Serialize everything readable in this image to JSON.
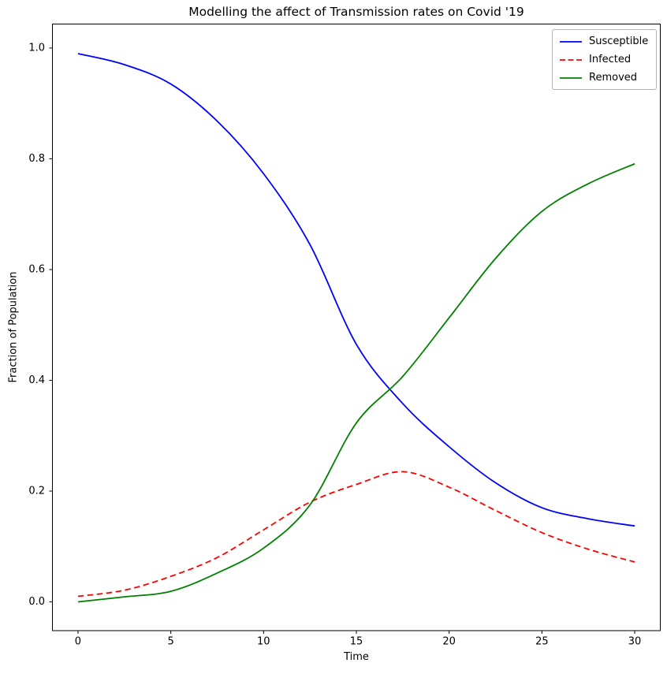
{
  "title": "Modelling the affect of Transmission rates on Covid '19",
  "xlabel": "Time",
  "ylabel": "Fraction of Population",
  "chart_data": {
    "type": "line",
    "x": [
      0,
      2.5,
      5,
      7.5,
      10,
      12.5,
      15,
      17.5,
      20,
      22.5,
      25,
      27.5,
      30
    ],
    "series": [
      {
        "name": "Susceptible",
        "color": "#0000ff",
        "linestyle": "solid",
        "values": [
          0.99,
          0.97,
          0.935,
          0.868,
          0.773,
          0.645,
          0.465,
          0.358,
          0.28,
          0.215,
          0.17,
          0.15,
          0.137
        ]
      },
      {
        "name": "Infected",
        "color": "#ff0000",
        "linestyle": "dashed",
        "values": [
          0.01,
          0.021,
          0.046,
          0.08,
          0.13,
          0.18,
          0.212,
          0.235,
          0.207,
          0.165,
          0.125,
          0.095,
          0.072
        ]
      },
      {
        "name": "Removed",
        "color": "#008000",
        "linestyle": "solid",
        "values": [
          0.0,
          0.009,
          0.019,
          0.052,
          0.097,
          0.175,
          0.323,
          0.407,
          0.513,
          0.62,
          0.705,
          0.755,
          0.791
        ]
      }
    ],
    "xlim": [
      -1.4,
      31.4
    ],
    "ylim": [
      -0.052,
      1.044
    ],
    "x_ticks": {
      "values": [
        0,
        5,
        10,
        15,
        20,
        25,
        30
      ],
      "labels": [
        "0",
        "5",
        "10",
        "15",
        "20",
        "25",
        "30"
      ]
    },
    "y_ticks": {
      "values": [
        0.0,
        0.2,
        0.4,
        0.6,
        0.8,
        1.0
      ],
      "labels": [
        "0.0",
        "0.2",
        "0.4",
        "0.6",
        "0.8",
        "1.0"
      ]
    },
    "legend_position": "upper right",
    "grid": false
  },
  "colors": {
    "axes": "#000000",
    "text": "#000000",
    "background": "#ffffff",
    "legend_border": "#b3b3b3"
  }
}
